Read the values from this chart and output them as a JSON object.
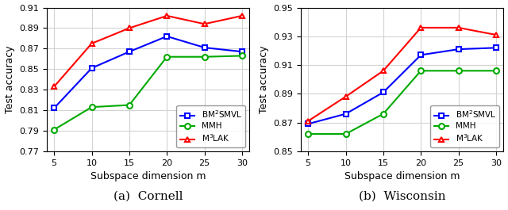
{
  "x": [
    5,
    10,
    15,
    20,
    25,
    30
  ],
  "cornell": {
    "bm2smvl": [
      0.812,
      0.851,
      0.867,
      0.882,
      0.871,
      0.867
    ],
    "mmh": [
      0.791,
      0.813,
      0.815,
      0.862,
      0.862,
      0.863
    ],
    "m3lak": [
      0.833,
      0.875,
      0.89,
      0.902,
      0.894,
      0.902
    ]
  },
  "wisconsin": {
    "bm2smvl": [
      0.869,
      0.876,
      0.891,
      0.917,
      0.921,
      0.922
    ],
    "mmh": [
      0.862,
      0.862,
      0.876,
      0.906,
      0.906,
      0.906
    ],
    "m3lak": [
      0.871,
      0.888,
      0.906,
      0.936,
      0.936,
      0.931
    ]
  },
  "cornell_ylim": [
    0.77,
    0.91
  ],
  "cornell_yticks": [
    0.77,
    0.79,
    0.81,
    0.83,
    0.85,
    0.87,
    0.89,
    0.91
  ],
  "wisconsin_ylim": [
    0.85,
    0.95
  ],
  "wisconsin_yticks": [
    0.85,
    0.87,
    0.89,
    0.91,
    0.93,
    0.95
  ],
  "color_blue": "#0000FF",
  "color_green": "#00AA00",
  "color_red": "#FF0000",
  "label_bm2smvl": "BM$^2$SMVL",
  "label_mmh": "MMH",
  "label_m3lak": "M$^3$LAK",
  "xlabel": "Subspace dimension m",
  "ylabel": "Test accuracy",
  "caption_a": "(a)  Cornell",
  "caption_b": "(b)  Wisconsin",
  "linewidth": 1.5,
  "markersize": 5
}
